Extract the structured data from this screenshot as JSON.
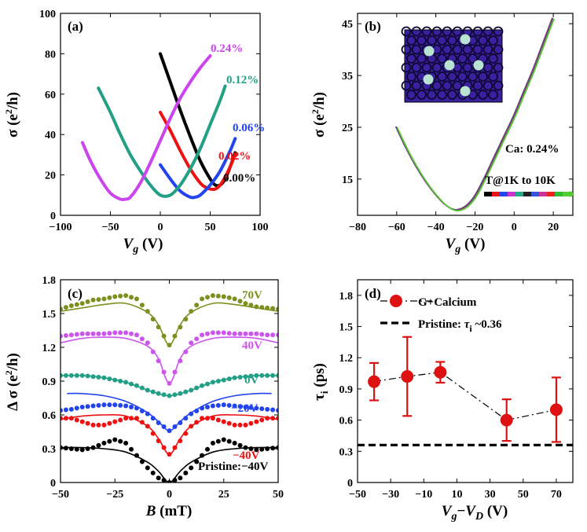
{
  "figure": {
    "panels": [
      {
        "id": "a",
        "label": "(a)",
        "xlabel": "V_g (V)",
        "ylabel": "σ (e²/h)",
        "xlim": [
          -100,
          100
        ],
        "ylim": [
          0,
          100
        ],
        "xticks": [
          -100,
          -50,
          0,
          50,
          100
        ],
        "yticks": [
          0,
          20,
          40,
          60,
          80,
          100
        ]
      },
      {
        "id": "b",
        "label": "(b)",
        "xlabel": "V_g (V)",
        "ylabel": "σ (e²/h)",
        "xlim": [
          -80,
          30
        ],
        "ylim": [
          8,
          47
        ],
        "xticks": [
          -80,
          -60,
          -40,
          -20,
          0,
          20
        ],
        "yticks": [
          15,
          25,
          35,
          45
        ],
        "annotation": "Ca: 0.24%",
        "temperature_label": "T@1K to 10K",
        "color_bar": [
          "#000000",
          "#ee1111",
          "#2244ee",
          "#cc33cc",
          "#22aa88",
          "#222222",
          "#3355dd",
          "#cc3399",
          "#ee2222",
          "#33bb33",
          "#55cc33"
        ],
        "inset": {
          "background": "#3a1f9e"
        }
      },
      {
        "id": "c",
        "label": "(c)",
        "xlabel": "B (mT)",
        "ylabel": "Δ σ (e²/h)",
        "xlim": [
          -50,
          50
        ],
        "ylim": [
          0,
          1.8
        ],
        "xticks": [
          -50,
          -25,
          0,
          25,
          50
        ],
        "yticks": [
          "0",
          "0.3",
          "0.6",
          "0.9",
          "1.2",
          "1.5",
          "1.8"
        ]
      },
      {
        "id": "d",
        "label": "(d)",
        "xlabel": "V_g − V_D (V)",
        "ylabel": "τ_i (ps)",
        "xlim": [
          -50,
          80
        ],
        "ylim": [
          0,
          1.95
        ],
        "xticks": [
          -50,
          -30,
          -10,
          10,
          30,
          50,
          70
        ],
        "yticks": [
          "0",
          "0.3",
          "0.6",
          "0.9",
          "1.2",
          "1.5",
          "1.8"
        ]
      }
    ]
  },
  "chart_data": [
    {
      "panel": "a",
      "type": "line",
      "title": "",
      "xlabel": "V_g (V)",
      "ylabel": "σ (e²/h)",
      "xlim": [
        -100,
        100
      ],
      "ylim": [
        0,
        100
      ],
      "series": [
        {
          "name": "0.00%",
          "label": "0.00%",
          "color": "#000000",
          "x": [
            0,
            10,
            20,
            30,
            40,
            50,
            55,
            60,
            65,
            70,
            75
          ],
          "y": [
            80,
            66,
            52,
            39,
            27,
            18,
            15,
            15,
            18,
            24,
            31
          ]
        },
        {
          "name": "0.02%",
          "label": "0.02%",
          "color": "#ee1111",
          "x": [
            0,
            10,
            20,
            30,
            40,
            45,
            50,
            55,
            60,
            65,
            70,
            75
          ],
          "y": [
            51,
            42,
            32,
            23,
            16,
            14,
            13,
            13,
            15,
            19,
            24,
            30
          ]
        },
        {
          "name": "0.06%",
          "label": "0.06%",
          "color": "#2244ee",
          "x": [
            0,
            10,
            20,
            30,
            35,
            40,
            50,
            60,
            70,
            75
          ],
          "y": [
            25,
            18,
            12,
            9,
            9,
            10,
            15,
            22,
            32,
            38
          ]
        },
        {
          "name": "0.12%",
          "label": "0.12%",
          "color": "#22a085",
          "x": [
            -62,
            -50,
            -40,
            -30,
            -20,
            -10,
            0,
            10,
            20,
            30,
            40,
            50,
            60,
            65
          ],
          "y": [
            63,
            51,
            40,
            30,
            22,
            15,
            10,
            10,
            15,
            23,
            33,
            45,
            57,
            64
          ]
        },
        {
          "name": "0.24%",
          "label": "0.24%",
          "color": "#cc44ee",
          "x": [
            -78,
            -70,
            -60,
            -50,
            -40,
            -35,
            -30,
            -20,
            -10,
            0,
            10,
            20,
            30,
            40,
            50
          ],
          "y": [
            36,
            27,
            18,
            11,
            8,
            8,
            9,
            16,
            26,
            37,
            48,
            58,
            66,
            73,
            79
          ]
        }
      ]
    },
    {
      "panel": "b",
      "type": "line",
      "title": "",
      "xlabel": "V_g (V)",
      "ylabel": "σ (e²/h)",
      "xlim": [
        -80,
        30
      ],
      "ylim": [
        8,
        47
      ],
      "series": [
        {
          "name": "T 1K–10K",
          "color": "#444444",
          "x": [
            -60,
            -55,
            -50,
            -45,
            -40,
            -35,
            -30,
            -25,
            -20,
            -15,
            -10,
            -5,
            0,
            5,
            10,
            15,
            20
          ],
          "y": [
            25,
            21,
            17.5,
            14.5,
            12,
            10,
            9,
            9.5,
            11.5,
            15,
            19,
            23,
            27,
            31.5,
            36,
            41,
            46
          ]
        }
      ]
    },
    {
      "panel": "c",
      "type": "scatter",
      "title": "",
      "xlabel": "B (mT)",
      "ylabel": "Δ σ (e²/h)",
      "xlim": [
        -50,
        50
      ],
      "ylim": [
        0,
        1.8
      ],
      "series": [
        {
          "name": "70V",
          "label": "70V",
          "color": "#7f8f1f",
          "offset": 1.22,
          "points_x": [
            -50,
            -45,
            -40,
            -35,
            -30,
            -25,
            -20,
            -15,
            -10,
            -5,
            0,
            5,
            10,
            15,
            20,
            25,
            30,
            35,
            40,
            45,
            50
          ],
          "points_y": [
            0.32,
            0.35,
            0.37,
            0.4,
            0.41,
            0.43,
            0.44,
            0.41,
            0.3,
            0.16,
            0.0,
            0.16,
            0.3,
            0.41,
            0.44,
            0.43,
            0.41,
            0.37,
            0.34,
            0.33,
            0.32
          ],
          "fit_x": [
            -50,
            -40,
            -30,
            -20,
            -10,
            -5,
            0,
            5,
            10,
            20,
            30,
            40,
            50
          ],
          "fit_y": [
            0.3,
            0.33,
            0.36,
            0.37,
            0.29,
            0.18,
            0.0,
            0.18,
            0.29,
            0.37,
            0.36,
            0.33,
            0.3
          ]
        },
        {
          "name": "40V",
          "label": "40V",
          "color": "#cc55ee",
          "offset": 0.88,
          "points_x": [
            -50,
            -45,
            -40,
            -35,
            -30,
            -25,
            -20,
            -15,
            -10,
            -5,
            0,
            5,
            10,
            15,
            20,
            25,
            30,
            35,
            40,
            45,
            50
          ],
          "points_y": [
            0.42,
            0.43,
            0.44,
            0.44,
            0.44,
            0.45,
            0.45,
            0.43,
            0.36,
            0.2,
            0.0,
            0.2,
            0.36,
            0.43,
            0.45,
            0.45,
            0.44,
            0.44,
            0.44,
            0.43,
            0.43
          ],
          "fit_x": [
            -50,
            -40,
            -30,
            -20,
            -10,
            -5,
            0,
            5,
            10,
            20,
            30,
            40,
            50
          ],
          "fit_y": [
            0.36,
            0.4,
            0.41,
            0.4,
            0.33,
            0.22,
            0.0,
            0.22,
            0.33,
            0.4,
            0.41,
            0.4,
            0.36
          ]
        },
        {
          "name": "0V",
          "label": "0V",
          "color": "#22a085",
          "offset": 0.77,
          "points_x": [
            -50,
            -45,
            -40,
            -35,
            -30,
            -25,
            -20,
            -15,
            -10,
            -5,
            0,
            5,
            10,
            15,
            20,
            25,
            30,
            35,
            40,
            45,
            50
          ],
          "points_y": [
            0.18,
            0.18,
            0.18,
            0.17,
            0.16,
            0.14,
            0.12,
            0.09,
            0.05,
            0.02,
            0.0,
            0.02,
            0.05,
            0.09,
            0.12,
            0.14,
            0.16,
            0.17,
            0.18,
            0.18,
            0.18
          ],
          "fit_x": [
            -50,
            -40,
            -30,
            -20,
            -10,
            0,
            10,
            20,
            30,
            40,
            50
          ],
          "fit_y": [
            0.18,
            0.18,
            0.16,
            0.12,
            0.05,
            0.0,
            0.05,
            0.12,
            0.16,
            0.18,
            0.18
          ]
        },
        {
          "name": "-20V",
          "label": "−20V",
          "color": "#2244ee",
          "offset": 0.46,
          "points_x": [
            -50,
            -45,
            -40,
            -35,
            -30,
            -25,
            -20,
            -15,
            -10,
            -5,
            0,
            5,
            10,
            15,
            20,
            25,
            30,
            35,
            40,
            45,
            50
          ],
          "points_y": [
            0.18,
            0.19,
            0.21,
            0.22,
            0.23,
            0.23,
            0.22,
            0.2,
            0.15,
            0.07,
            0.0,
            0.07,
            0.15,
            0.2,
            0.22,
            0.23,
            0.22,
            0.21,
            0.2,
            0.19,
            0.18
          ],
          "fit_x": [
            -47,
            -40,
            -30,
            -20,
            -10,
            -5,
            0,
            5,
            10,
            20,
            30,
            40,
            47
          ],
          "fit_y": [
            0.33,
            0.33,
            0.31,
            0.26,
            0.16,
            0.08,
            0.0,
            0.08,
            0.16,
            0.26,
            0.31,
            0.33,
            0.33
          ]
        },
        {
          "name": "-40V",
          "label": "−40V",
          "color": "#ee1111",
          "offset": 0.25,
          "points_x": [
            -50,
            -45,
            -40,
            -35,
            -30,
            -25,
            -20,
            -15,
            -10,
            -5,
            0,
            5,
            10,
            15,
            20,
            25,
            30,
            35,
            40,
            45,
            50
          ],
          "points_y": [
            0.32,
            0.32,
            0.29,
            0.26,
            0.26,
            0.29,
            0.32,
            0.32,
            0.25,
            0.12,
            0.0,
            0.12,
            0.25,
            0.32,
            0.32,
            0.29,
            0.26,
            0.26,
            0.29,
            0.32,
            0.32
          ],
          "fit_x": [
            -50,
            -40,
            -30,
            -20,
            -10,
            -5,
            0,
            5,
            10,
            20,
            30,
            40,
            50
          ],
          "fit_y": [
            0.31,
            0.34,
            0.35,
            0.34,
            0.25,
            0.14,
            0.0,
            0.14,
            0.25,
            0.34,
            0.35,
            0.34,
            0.31
          ]
        },
        {
          "name": "Pristine: -40V",
          "label": "Pristine:−40V",
          "color": "#000000",
          "offset": 0.0,
          "points_x": [
            -50,
            -45,
            -40,
            -35,
            -30,
            -25,
            -20,
            -15,
            -10,
            -5,
            0,
            5,
            10,
            15,
            20,
            25,
            30,
            35,
            40,
            45,
            50
          ],
          "points_y": [
            0.31,
            0.3,
            0.29,
            0.31,
            0.35,
            0.38,
            0.35,
            0.24,
            0.13,
            0.04,
            0.0,
            0.04,
            0.13,
            0.24,
            0.35,
            0.38,
            0.35,
            0.31,
            0.29,
            0.3,
            0.31
          ],
          "fit_x": [
            -50,
            -40,
            -30,
            -20,
            -10,
            -5,
            0,
            5,
            10,
            20,
            30,
            40,
            50
          ],
          "fit_y": [
            0.31,
            0.31,
            0.3,
            0.27,
            0.18,
            0.1,
            0.0,
            0.1,
            0.18,
            0.27,
            0.3,
            0.31,
            0.31
          ]
        }
      ]
    },
    {
      "panel": "d",
      "type": "scatter",
      "title": "",
      "xlabel": "V_g − V_D (V)",
      "ylabel": "τ_i (ps)",
      "xlim": [
        -50,
        80
      ],
      "ylim": [
        0,
        1.95
      ],
      "series": [
        {
          "name": "G+Calcium",
          "color": "#dd1111",
          "x": [
            -40,
            -20,
            0,
            40,
            70
          ],
          "y": [
            0.97,
            1.02,
            1.06,
            0.6,
            0.7
          ],
          "err": [
            0.18,
            0.38,
            0.1,
            0.2,
            0.31
          ]
        }
      ],
      "reference": {
        "name": "Pristine",
        "value": 0.36,
        "label_prefix": "Pristine: ",
        "label_symbol": "τ",
        "label_sub": "i",
        "label_value": " ~0.36"
      },
      "legend": [
        "G+Calcium",
        "Pristine: τi ~0.36"
      ]
    }
  ]
}
